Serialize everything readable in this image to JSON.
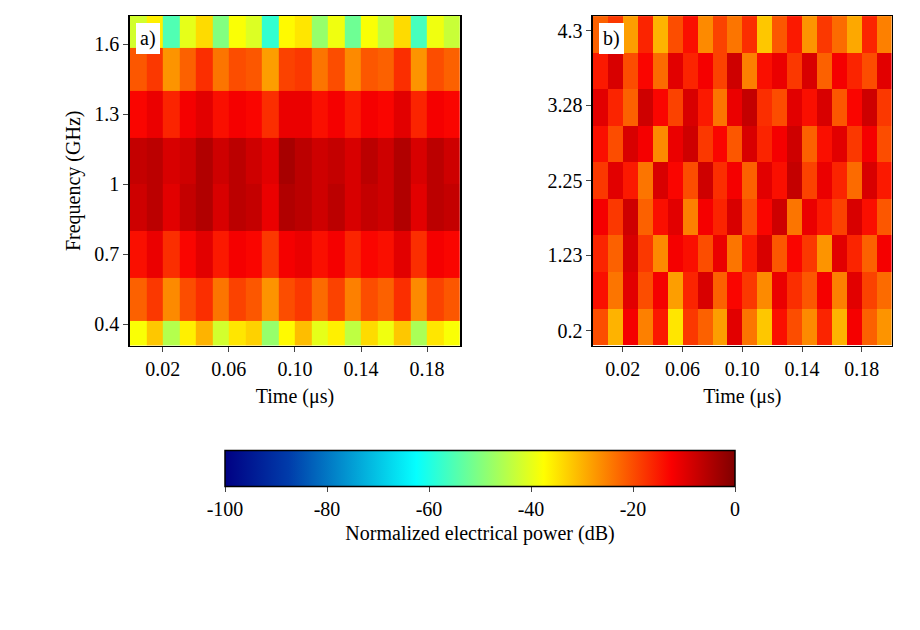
{
  "chart_data": [
    {
      "type": "heatmap",
      "panel": "a)",
      "xlabel": "Time (μs)",
      "ylabel": "Frequency (GHz)",
      "xlim": [
        0,
        0.2
      ],
      "ylim": [
        0.31,
        1.72
      ],
      "xticks": [
        0.02,
        0.06,
        {
          "value": 0.1,
          "label": "0.10"
        },
        0.14,
        0.18
      ],
      "yticks": [
        0.4,
        0.7,
        1,
        1.3,
        1.6
      ],
      "x": [
        0.005,
        0.015,
        0.025,
        0.035,
        0.045,
        0.055,
        0.065,
        0.075,
        0.085,
        0.095,
        0.105,
        0.115,
        0.125,
        0.135,
        0.145,
        0.155,
        0.165,
        0.175,
        0.185,
        0.195
      ],
      "y": [
        0.33,
        0.5,
        0.7,
        0.9,
        1.1,
        1.3,
        1.5,
        1.67
      ],
      "z": [
        [
          -38,
          -32,
          -45,
          -36,
          -30,
          -42,
          -35,
          -33,
          -48,
          -37,
          -31,
          -40,
          -36,
          -44,
          -34,
          -39,
          -32,
          -46,
          -35,
          -38
        ],
        [
          -22,
          -18,
          -26,
          -20,
          -17,
          -24,
          -19,
          -21,
          -27,
          -20,
          -18,
          -23,
          -19,
          -25,
          -20,
          -22,
          -17,
          -26,
          -19,
          -21
        ],
        [
          -14,
          -11,
          -17,
          -13,
          -10,
          -15,
          -12,
          -13,
          -18,
          -12,
          -11,
          -14,
          -12,
          -16,
          -13,
          -14,
          -10,
          -17,
          -12,
          -13
        ],
        [
          -8,
          -6,
          -10,
          -7,
          -5,
          -9,
          -6,
          -7,
          -11,
          -5,
          -6,
          -8,
          -6,
          -9,
          -7,
          -8,
          -5,
          -10,
          -6,
          -7
        ],
        [
          -7,
          -6,
          -9,
          -8,
          -5,
          -8,
          -6,
          -8,
          -10,
          -4,
          -6,
          -8,
          -7,
          -9,
          -6,
          -8,
          -5,
          -9,
          -6,
          -8
        ],
        [
          -13,
          -11,
          -16,
          -12,
          -10,
          -14,
          -12,
          -13,
          -17,
          -11,
          -11,
          -14,
          -12,
          -15,
          -12,
          -13,
          -10,
          -16,
          -12,
          -13
        ],
        [
          -21,
          -18,
          -27,
          -22,
          -17,
          -24,
          -20,
          -21,
          -28,
          -19,
          -18,
          -24,
          -20,
          -26,
          -21,
          -22,
          -17,
          -27,
          -20,
          -22
        ],
        [
          -42,
          -36,
          -55,
          -40,
          -34,
          -50,
          -38,
          -41,
          -58,
          -37,
          -35,
          -48,
          -39,
          -52,
          -38,
          -44,
          -34,
          -56,
          -39,
          -43
        ]
      ]
    },
    {
      "type": "heatmap",
      "panel": "b)",
      "xlabel": "Time (μs)",
      "xlim": [
        0,
        0.2
      ],
      "ylim": [
        0,
        4.5
      ],
      "xticks": [
        0.02,
        0.06,
        {
          "value": 0.1,
          "label": "0.10"
        },
        0.14,
        0.18
      ],
      "yticks": [
        0.2,
        1.23,
        2.25,
        3.28,
        4.3
      ],
      "x": [
        0.005,
        0.015,
        0.025,
        0.035,
        0.045,
        0.055,
        0.065,
        0.075,
        0.085,
        0.095,
        0.105,
        0.115,
        0.125,
        0.135,
        0.145,
        0.155,
        0.165,
        0.175,
        0.185,
        0.195
      ],
      "y": [
        0.25,
        0.75,
        1.25,
        1.75,
        2.25,
        2.75,
        3.25,
        3.75,
        4.25
      ],
      "z": [
        [
          -20,
          -30,
          -12,
          -25,
          -15,
          -35,
          -18,
          -22,
          -28,
          -10,
          -24,
          -32,
          -14,
          -20,
          -26,
          -16,
          -30,
          -12,
          -22,
          -27
        ],
        [
          -14,
          -24,
          -10,
          -20,
          -12,
          -28,
          -16,
          -9,
          -22,
          -13,
          -18,
          -26,
          -11,
          -17,
          -21,
          -12,
          -25,
          -10,
          -19,
          -23
        ],
        [
          -16,
          -22,
          -9,
          -18,
          -26,
          -12,
          -14,
          -20,
          -11,
          -24,
          -15,
          -9,
          -21,
          -13,
          -18,
          -27,
          -10,
          -16,
          -22,
          -12
        ],
        [
          -12,
          -18,
          -8,
          -22,
          -14,
          -10,
          -25,
          -12,
          -16,
          -9,
          -20,
          -13,
          -8,
          -24,
          -11,
          -15,
          -19,
          -9,
          -14,
          -21
        ],
        [
          -18,
          -10,
          -15,
          -24,
          -9,
          -13,
          -20,
          -8,
          -17,
          -12,
          -22,
          -10,
          -14,
          -7,
          -19,
          -11,
          -16,
          -23,
          -9,
          -15
        ],
        [
          -14,
          -20,
          -9,
          -12,
          -26,
          -11,
          -8,
          -18,
          -13,
          -21,
          -9,
          -16,
          -12,
          -8,
          -22,
          -14,
          -10,
          -18,
          -12,
          -20
        ],
        [
          -10,
          -16,
          -22,
          -8,
          -13,
          -19,
          -9,
          -15,
          -24,
          -11,
          -7,
          -17,
          -20,
          -10,
          -14,
          -9,
          -21,
          -13,
          -8,
          -18
        ],
        [
          -15,
          -9,
          -20,
          -13,
          -23,
          -10,
          -16,
          -12,
          -19,
          -8,
          -25,
          -14,
          -11,
          -18,
          -9,
          -22,
          -12,
          -16,
          -20,
          -10
        ],
        [
          -22,
          -18,
          -28,
          -16,
          -30,
          -20,
          -14,
          -26,
          -19,
          -24,
          -17,
          -32,
          -21,
          -15,
          -27,
          -18,
          -23,
          -29,
          -16,
          -25
        ]
      ]
    }
  ],
  "colorbar": {
    "title": "Normalized electrical power (dB)",
    "range": [
      -100,
      0
    ],
    "ticks": [
      -100,
      -80,
      -60,
      -40,
      -20,
      0
    ]
  }
}
